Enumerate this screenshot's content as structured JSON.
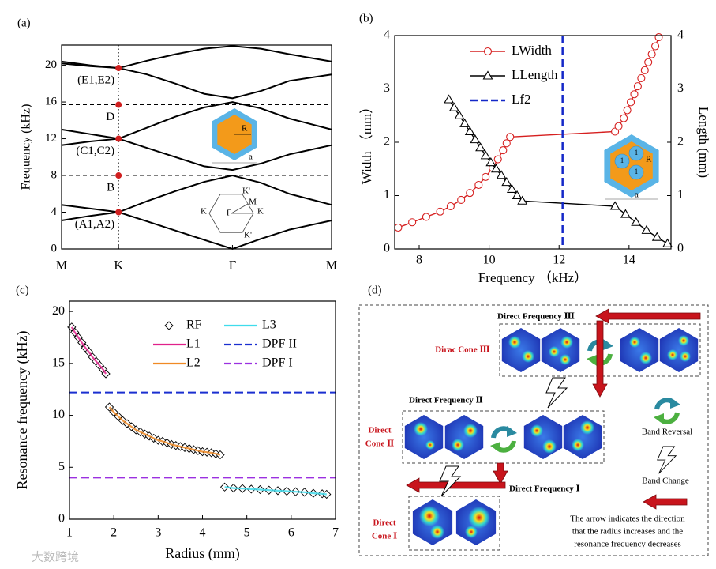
{
  "chart_data": [
    {
      "type": "line",
      "panel": "(a)",
      "ylabel": "Frequency (kHz)",
      "x": [
        0,
        0.25,
        0.5,
        0.75,
        1,
        1.25,
        1.5,
        1.75,
        2,
        2.37
      ],
      "xlim": [
        0,
        2.37
      ],
      "xticks": [
        {
          "value": 0,
          "label": "M"
        },
        {
          "value": 0.5,
          "label": "K"
        },
        {
          "value": 1.5,
          "label": "Γ"
        },
        {
          "value": 2.37,
          "label": "M"
        }
      ],
      "ylim": [
        0,
        22.2
      ],
      "yticks": [
        0,
        4,
        8,
        12,
        16,
        20
      ],
      "series": [
        {
          "color": "#000000",
          "values": [
            3.1,
            3.6,
            4.0,
            3.0,
            2.0,
            1.0,
            0,
            1.1,
            2.1,
            3.1
          ]
        },
        {
          "color": "#000000",
          "values": [
            4.8,
            4.4,
            4.0,
            5.2,
            6.3,
            7.3,
            8.0,
            7.2,
            6.0,
            4.8
          ]
        },
        {
          "color": "#000000",
          "values": [
            11.3,
            11.7,
            12.0,
            11.0,
            10.0,
            9.0,
            8.6,
            9.3,
            10.3,
            11.3
          ]
        },
        {
          "color": "#000000",
          "values": [
            13.0,
            12.5,
            12.0,
            13.2,
            14.4,
            15.4,
            16.0,
            15.3,
            14.2,
            13.0
          ]
        },
        {
          "color": "#000000",
          "values": [
            20.2,
            19.9,
            19.7,
            19.0,
            18.0,
            16.9,
            16.4,
            17.2,
            18.3,
            19.0
          ]
        },
        {
          "color": "#000000",
          "values": [
            20.4,
            20.0,
            19.7,
            20.5,
            21.2,
            21.8,
            22.1,
            21.8,
            21.2,
            20.4
          ]
        }
      ],
      "points": {
        "color": "#d01f1f",
        "x": [
          0.5,
          0.5,
          0.5,
          0.5,
          0.5
        ],
        "values": [
          19.7,
          15.7,
          12.0,
          8.0,
          4.0
        ],
        "labels": [
          "(E1,E2)",
          "D",
          "(C1,C2)",
          "B",
          "(A1,A2)"
        ]
      },
      "hlines": [
        15.7,
        8.0
      ],
      "vline": 0.5,
      "inset_labels": [
        "R",
        "a"
      ],
      "bz_labels": [
        "K'",
        "M",
        "K",
        "Γ",
        "K",
        "K'"
      ]
    },
    {
      "type": "line",
      "panel": "(b)",
      "xlabel": "Frequency （kHz）",
      "ylabel": "Width （mm）",
      "y2label": "Length (mm)",
      "xlim": [
        7.3,
        15.2
      ],
      "xticks": [
        8,
        10,
        12,
        14
      ],
      "ylim": [
        0,
        4
      ],
      "yticks": [
        0,
        1,
        2,
        3,
        4
      ],
      "y2lim": [
        0,
        4
      ],
      "y2ticks": [
        0,
        1,
        2,
        3,
        4
      ],
      "series": [
        {
          "name": "LWidth",
          "color": "#d62020",
          "marker": "circle",
          "x": [
            7.4,
            7.8,
            8.2,
            8.6,
            8.9,
            9.2,
            9.45,
            9.7,
            9.9,
            10.1,
            10.25,
            10.4,
            10.5,
            10.6,
            13.6,
            13.7,
            13.85,
            13.95,
            14.05,
            14.15,
            14.25,
            14.35,
            14.45,
            14.55,
            14.65,
            14.75,
            14.85
          ],
          "values": [
            0.4,
            0.5,
            0.6,
            0.7,
            0.8,
            0.92,
            1.05,
            1.2,
            1.35,
            1.52,
            1.68,
            1.85,
            1.98,
            2.1,
            2.2,
            2.3,
            2.45,
            2.6,
            2.75,
            2.9,
            3.05,
            3.2,
            3.35,
            3.5,
            3.65,
            3.8,
            3.97
          ]
        },
        {
          "name": "LLength",
          "color": "#000000",
          "marker": "triangle",
          "axis": "y2",
          "x": [
            8.85,
            9.0,
            9.15,
            9.3,
            9.45,
            9.6,
            9.75,
            9.9,
            10.05,
            10.2,
            10.35,
            10.5,
            10.65,
            10.8,
            10.95,
            13.6,
            13.9,
            14.2,
            14.5,
            14.8,
            15.1
          ],
          "values": [
            2.8,
            2.65,
            2.5,
            2.35,
            2.2,
            2.05,
            1.9,
            1.75,
            1.62,
            1.5,
            1.38,
            1.25,
            1.12,
            1.0,
            0.9,
            0.8,
            0.65,
            0.5,
            0.35,
            0.22,
            0.1
          ]
        },
        {
          "name": "Lf2",
          "color": "#1428c8",
          "type": "vline",
          "dashed": true,
          "x": [
            12.1
          ]
        }
      ],
      "inset_labels": [
        "1",
        "1",
        "1",
        "R",
        "a"
      ]
    },
    {
      "type": "scatter",
      "panel": "(c)",
      "xlabel": "Radius (mm)",
      "ylabel": "Resonance frequency (kHz)",
      "xlim": [
        1,
        7
      ],
      "xticks": [
        1,
        2,
        3,
        4,
        5,
        6,
        7
      ],
      "ylim": [
        0,
        21
      ],
      "yticks": [
        0,
        5,
        10,
        15,
        20
      ],
      "series": [
        {
          "name": "RF",
          "type": "scatter",
          "color": "#000000",
          "x": [
            1.05,
            1.12,
            1.2,
            1.28,
            1.36,
            1.44,
            1.52,
            1.6,
            1.68,
            1.76,
            1.82,
            1.9,
            2.0,
            2.1,
            2.2,
            2.3,
            2.4,
            2.5,
            2.6,
            2.7,
            2.8,
            2.9,
            3.0,
            3.1,
            3.2,
            3.3,
            3.4,
            3.5,
            3.6,
            3.7,
            3.8,
            3.9,
            4.0,
            4.1,
            4.2,
            4.3,
            4.4,
            4.5,
            4.7,
            4.9,
            5.1,
            5.3,
            5.5,
            5.7,
            5.9,
            6.1,
            6.3,
            6.5,
            6.7,
            6.8
          ],
          "values": [
            18.5,
            18.0,
            17.5,
            17.0,
            16.5,
            16.1,
            15.6,
            15.2,
            14.8,
            14.4,
            14.0,
            10.8,
            10.3,
            9.9,
            9.5,
            9.2,
            8.9,
            8.6,
            8.4,
            8.2,
            8.0,
            7.8,
            7.6,
            7.5,
            7.35,
            7.2,
            7.1,
            7.0,
            6.9,
            6.8,
            6.7,
            6.6,
            6.5,
            6.45,
            6.4,
            6.3,
            6.2,
            3.1,
            3.0,
            2.95,
            2.9,
            2.85,
            2.8,
            2.75,
            2.7,
            2.65,
            2.6,
            2.5,
            2.45,
            2.4
          ]
        },
        {
          "name": "L1",
          "type": "line",
          "color": "#e0218a",
          "x": [
            1.05,
            1.12,
            1.2,
            1.28,
            1.36,
            1.44,
            1.52,
            1.6,
            1.68,
            1.76,
            1.82
          ],
          "values": [
            18.5,
            18.0,
            17.5,
            17.0,
            16.5,
            16.1,
            15.6,
            15.2,
            14.8,
            14.4,
            14.0
          ]
        },
        {
          "name": "L2",
          "type": "line",
          "color": "#f08a24",
          "x": [
            1.9,
            2.0,
            2.1,
            2.2,
            2.3,
            2.4,
            2.5,
            2.6,
            2.7,
            2.8,
            2.9,
            3.0,
            3.1,
            3.2,
            3.3,
            3.4,
            3.5,
            3.6,
            3.7,
            3.8,
            3.9,
            4.0,
            4.1,
            4.2,
            4.3,
            4.4
          ],
          "values": [
            10.8,
            10.3,
            9.9,
            9.5,
            9.2,
            8.9,
            8.6,
            8.4,
            8.2,
            8.0,
            7.8,
            7.6,
            7.5,
            7.35,
            7.2,
            7.1,
            7.0,
            6.9,
            6.8,
            6.7,
            6.6,
            6.5,
            6.45,
            6.4,
            6.3,
            6.2
          ]
        },
        {
          "name": "L3",
          "type": "line",
          "color": "#3fdcec",
          "x": [
            4.5,
            4.7,
            4.9,
            5.1,
            5.3,
            5.5,
            5.7,
            5.9,
            6.1,
            6.3,
            6.5,
            6.7,
            6.8
          ],
          "values": [
            3.1,
            3.0,
            2.95,
            2.9,
            2.85,
            2.8,
            2.75,
            2.7,
            2.65,
            2.6,
            2.5,
            2.45,
            2.4
          ]
        },
        {
          "name": "DPF II",
          "type": "hline",
          "dashed": true,
          "color": "#1a2fd0",
          "values": [
            12.2
          ]
        },
        {
          "name": "DPF I",
          "type": "hline",
          "dashed": true,
          "color": "#9b30e0",
          "values": [
            4.0
          ]
        }
      ]
    }
  ],
  "diagram": {
    "panel": "(d)",
    "steps": [
      {
        "frequency": "Direct Frequency Ⅲ",
        "cone": [
          "Dirac Cone Ⅲ"
        ]
      },
      {
        "frequency": "Direct Frequency Ⅱ",
        "cone": [
          "Direct",
          "Cone Ⅱ"
        ]
      },
      {
        "frequency": "Direct Frequency Ⅰ",
        "cone": [
          "Direct",
          "Cone Ⅰ"
        ]
      }
    ],
    "legend": [
      "Band Reversal",
      "Band Change"
    ],
    "note": [
      "The arrow indicates the direction",
      "that the radius increases and the",
      "resonance frequency decreases"
    ]
  },
  "watermark": "大数跨境"
}
